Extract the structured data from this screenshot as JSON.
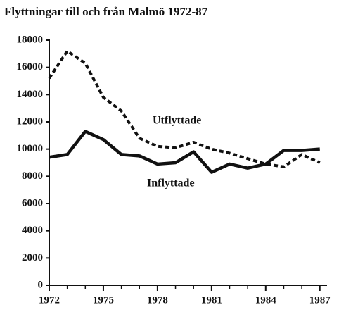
{
  "chart_data": {
    "type": "line",
    "title": "Flyttningar till och från Malmö 1972-87",
    "x": [
      1972,
      1973,
      1974,
      1975,
      1976,
      1977,
      1978,
      1979,
      1980,
      1981,
      1982,
      1983,
      1984,
      1985,
      1986,
      1987
    ],
    "series": [
      {
        "name": "Utflyttade",
        "color": "#111111",
        "dash": true,
        "values": [
          15200,
          17200,
          16300,
          13800,
          12800,
          10800,
          10200,
          10100,
          10500,
          10000,
          9700,
          9300,
          8900,
          8700,
          9600,
          9000
        ]
      },
      {
        "name": "Inflyttade",
        "color": "#111111",
        "dash": false,
        "values": [
          9400,
          9600,
          11300,
          10700,
          9600,
          9500,
          8900,
          9000,
          9800,
          8300,
          8900,
          8600,
          8900,
          9900,
          9900,
          10000
        ]
      }
    ],
    "xlim": [
      1972,
      1987.4
    ],
    "xticks": [
      1972,
      1975,
      1978,
      1981,
      1984,
      1987
    ],
    "xminorticks": [
      1972,
      1973,
      1974,
      1975,
      1976,
      1977,
      1978,
      1979,
      1980,
      1981,
      1982,
      1983,
      1984,
      1985,
      1986,
      1987
    ],
    "ylim": [
      0,
      18000
    ],
    "yticks": [
      0,
      2000,
      4000,
      6000,
      8000,
      10000,
      12000,
      14000,
      16000,
      18000
    ]
  }
}
